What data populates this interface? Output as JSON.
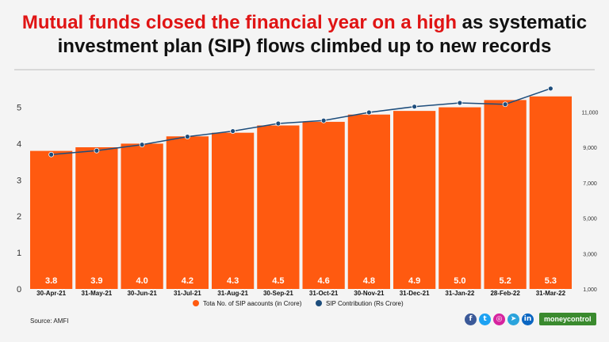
{
  "headline": {
    "highlight": "Mutual funds closed the financial year on a high",
    "rest": " as systematic investment plan (SIP) flows climbed up to new records"
  },
  "colors": {
    "bar": "#ff5a10",
    "line": "#1d4d7c",
    "highlight": "#e01414"
  },
  "source": "Source: AMFI",
  "social_icons": [
    "facebook-icon",
    "twitter-icon",
    "instagram-icon",
    "telegram-icon",
    "linkedin-icon"
  ],
  "brand": "moneycontrol",
  "chart_data": {
    "type": "bar",
    "categories": [
      "30-Apr-21",
      "31-May-21",
      "30-Jun-21",
      "31-Jul-21",
      "31-Aug-21",
      "30-Sep-21",
      "31-Oct-21",
      "30-Nov-21",
      "31-Dec-21",
      "31-Jan-22",
      "28-Feb-22",
      "31-Mar-22"
    ],
    "series": [
      {
        "name": "Tota No. of SIP aacounts (in Crore)",
        "type": "bar",
        "axis": "left",
        "values": [
          3.8,
          3.9,
          4.0,
          4.2,
          4.3,
          4.5,
          4.6,
          4.8,
          4.9,
          5.0,
          5.2,
          5.3
        ],
        "labels": [
          "3.8",
          "3.9",
          "4.0",
          "4.2",
          "4.3",
          "4.5",
          "4.6",
          "4.8",
          "4.9",
          "5.0",
          "5.2",
          "5.3"
        ]
      },
      {
        "name": "SIP Contribution (Rs Crore)",
        "type": "line",
        "axis": "right",
        "values": [
          8596,
          8819,
          9156,
          9609,
          9923,
          10351,
          10519,
          10980,
          11305,
          11517,
          11438,
          12328
        ]
      }
    ],
    "left_axis": {
      "ticks": [
        "0",
        "1",
        "2",
        "3",
        "4",
        "5"
      ],
      "range": [
        0,
        5.6
      ]
    },
    "right_axis": {
      "ticks": [
        "1,000",
        "3,000",
        "5,000",
        "7,000",
        "9,000",
        "11,000"
      ],
      "range": [
        1000,
        12500
      ]
    },
    "legend_position": "bottom",
    "grid": false
  }
}
